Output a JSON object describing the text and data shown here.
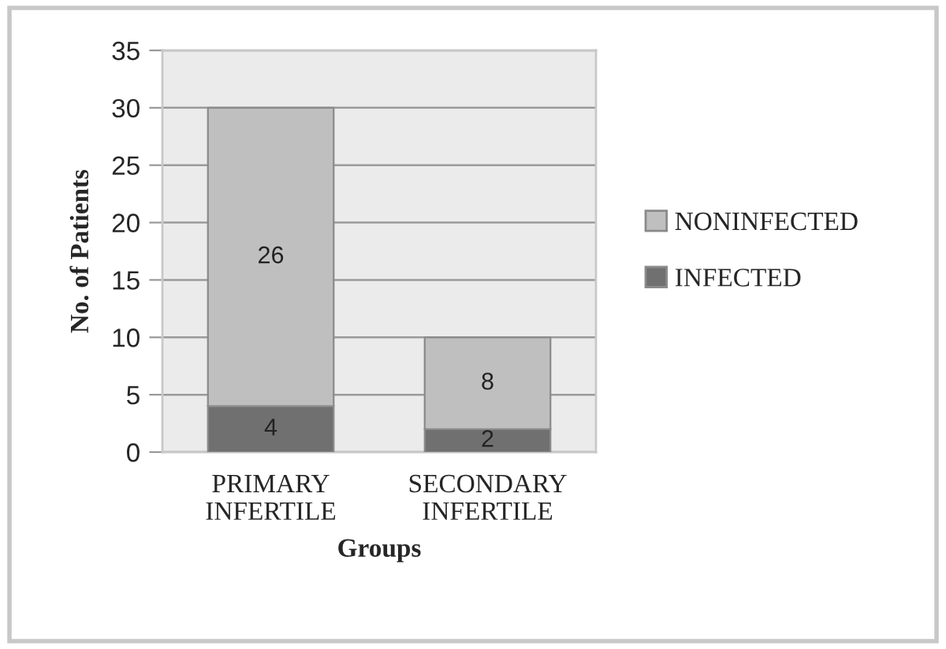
{
  "chart_data": {
    "type": "bar",
    "stacked": true,
    "xlabel": "Groups",
    "ylabel": "No. of Patients",
    "categories": [
      "PRIMARY\nINFERTILE",
      "SECONDARY\nINFERTILE"
    ],
    "series": [
      {
        "name": "INFECTED",
        "color": "#707070",
        "values": [
          4,
          2
        ]
      },
      {
        "name": "NONINFECTED",
        "color": "#bfbfbf",
        "values": [
          26,
          8
        ]
      }
    ],
    "ylim": [
      0,
      35
    ],
    "yticks": [
      0,
      5,
      10,
      15,
      20,
      25,
      30,
      35
    ],
    "grid": "y",
    "legend": "right",
    "data_labels": true
  }
}
